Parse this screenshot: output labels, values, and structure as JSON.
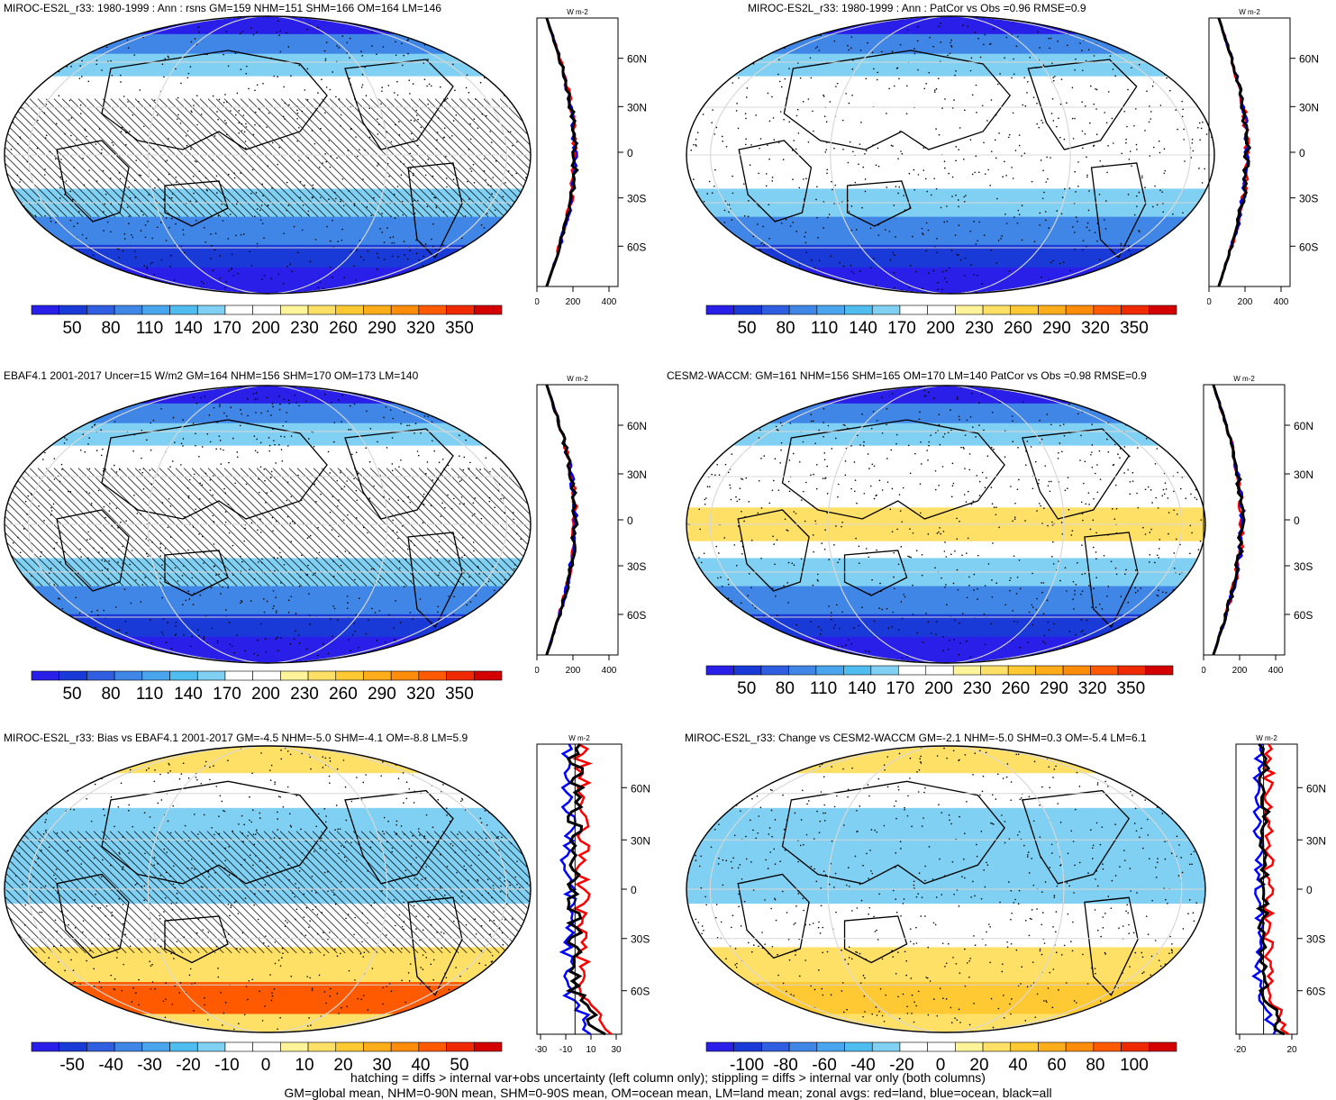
{
  "panels": [
    {
      "title": "MIROC-ES2L_r33: 1980-1999 : Ann : rsns GM=159 NHM=151 SHM=166 OM=164 LM=146",
      "colorbar": [
        "50",
        "80",
        "110",
        "140",
        "170",
        "200",
        "230",
        "260",
        "290",
        "320",
        "350"
      ],
      "zonal_ticks_x": [
        "0",
        "200",
        "400"
      ],
      "zonal_ticks_lat": [
        "60N",
        "30N",
        "0",
        "30S",
        "60S"
      ],
      "zonal_unit": "W m-2"
    },
    {
      "title": "MIROC-ES2L_r33: 1980-1999 : Ann : PatCor vs Obs =0.96 RMSE=0.9",
      "colorbar": [
        "50",
        "80",
        "110",
        "140",
        "170",
        "200",
        "230",
        "260",
        "290",
        "320",
        "350"
      ],
      "zonal_ticks_x": [
        "0",
        "200",
        "400"
      ],
      "zonal_ticks_lat": [
        "60N",
        "30N",
        "0",
        "30S",
        "60S"
      ],
      "zonal_unit": "W m-2"
    },
    {
      "title": "EBAF4.1 2001-2017 Uncer=15 W/m2 GM=164 NHM=156 SHM=170 OM=173 LM=140",
      "colorbar": [
        "50",
        "80",
        "110",
        "140",
        "170",
        "200",
        "230",
        "260",
        "290",
        "320",
        "350"
      ],
      "zonal_ticks_x": [
        "0",
        "200",
        "400"
      ],
      "zonal_ticks_lat": [
        "60N",
        "30N",
        "0",
        "30S",
        "60S"
      ],
      "zonal_unit": "W m-2"
    },
    {
      "title": "CESM2-WACCM: GM=161 NHM=156 SHM=165 OM=170 LM=140 PatCor vs Obs =0.98 RMSE=0.9",
      "colorbar": [
        "50",
        "80",
        "110",
        "140",
        "170",
        "200",
        "230",
        "260",
        "290",
        "320",
        "350"
      ],
      "zonal_ticks_x": [
        "0",
        "200",
        "400"
      ],
      "zonal_ticks_lat": [
        "60N",
        "30N",
        "0",
        "30S",
        "60S"
      ],
      "zonal_unit": "W m-2"
    },
    {
      "title": "MIROC-ES2L_r33: Bias vs EBAF4.1 2001-2017 GM=-4.5 NHM=-5.0 SHM=-4.1 OM=-8.8 LM=5.9",
      "colorbar": [
        "-50",
        "-40",
        "-30",
        "-20",
        "-10",
        "0",
        "10",
        "20",
        "30",
        "40",
        "50"
      ],
      "zonal_ticks_x": [
        "-30",
        "-10",
        "10",
        "30"
      ],
      "zonal_ticks_lat": [
        "60N",
        "30N",
        "0",
        "30S",
        "60S"
      ],
      "zonal_unit": "W m-2"
    },
    {
      "title": "MIROC-ES2L_r33: Change vs CESM2-WACCM GM=-2.1 NHM=-5.0 SHM=0.3 OM=-5.4 LM=6.1",
      "colorbar": [
        "-100",
        "-80",
        "-60",
        "-40",
        "-20",
        "0",
        "20",
        "40",
        "60",
        "80",
        "100"
      ],
      "zonal_ticks_x": [
        "-20",
        "20"
      ],
      "zonal_ticks_lat": [
        "60N",
        "30N",
        "0",
        "30S",
        "60S"
      ],
      "zonal_unit": "W m-2"
    }
  ],
  "footer": {
    "line1": "hatching = diffs > internal var+obs uncertainty (left column only); stippling = diffs > internal var only (both columns)",
    "line2": "GM=global mean, NHM=0-90N mean, SHM=0-90S mean, OM=ocean mean, LM=land mean; zonal avgs: red=land, blue=ocean, black=all"
  },
  "colors": {
    "abs_scale": [
      "#2a1fe8",
      "#1a3ad8",
      "#2f5fe0",
      "#3f86e6",
      "#49a6ee",
      "#50bdf0",
      "#7fd0f2",
      "#ffffff",
      "#ffffff",
      "#fff49a",
      "#ffe066",
      "#ffc933",
      "#ffad1a",
      "#ff8c0a",
      "#ff5a00",
      "#ef2a00",
      "#d40000"
    ],
    "zonal_land": "#ff0000",
    "zonal_ocean": "#0000ff",
    "zonal_all": "#000000"
  }
}
